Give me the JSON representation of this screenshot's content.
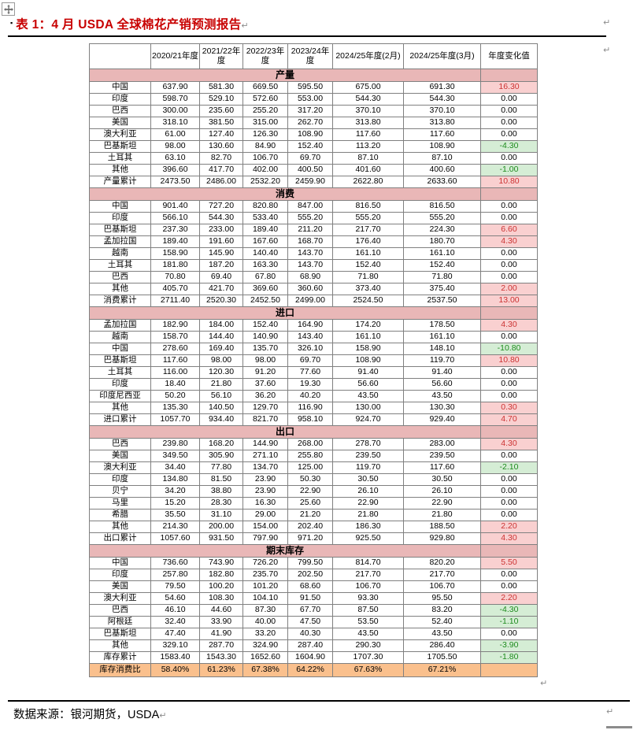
{
  "title": {
    "bullet": "▪",
    "text": "表 1：4 月 USDA 全球棉花产销预测报告"
  },
  "marks": {
    "return": "↵"
  },
  "source": {
    "text": "数据来源：银河期货，USDA"
  },
  "colors": {
    "title_red": "#c80000",
    "section_header_bg": "#e9b7b7",
    "increase_bg": "#f9d0d0",
    "increase_text": "#cc3333",
    "decrease_bg": "#d5edd5",
    "decrease_text": "#1e8b1e",
    "ratio_row_bg": "#fac08d",
    "grid_border": "#808080"
  },
  "table": {
    "headers": [
      "",
      "2020/21年度",
      "2021/22年度",
      "2022/23年度",
      "2023/24年度",
      "2024/25年度(2月)",
      "2024/25年度(3月)",
      "年度变化值"
    ],
    "sections": [
      {
        "name": "产量",
        "rows": [
          {
            "label": "中国",
            "values": [
              "637.90",
              "581.30",
              "669.50",
              "595.50",
              "675.00",
              "691.30"
            ],
            "change": "16.30"
          },
          {
            "label": "印度",
            "values": [
              "598.70",
              "529.10",
              "572.60",
              "553.00",
              "544.30",
              "544.30"
            ],
            "change": "0.00"
          },
          {
            "label": "巴西",
            "values": [
              "300.00",
              "235.60",
              "255.20",
              "317.20",
              "370.10",
              "370.10"
            ],
            "change": "0.00"
          },
          {
            "label": "美国",
            "values": [
              "318.10",
              "381.50",
              "315.00",
              "262.70",
              "313.80",
              "313.80"
            ],
            "change": "0.00"
          },
          {
            "label": "澳大利亚",
            "values": [
              "61.00",
              "127.40",
              "126.30",
              "108.90",
              "117.60",
              "117.60"
            ],
            "change": "0.00"
          },
          {
            "label": "巴基斯坦",
            "values": [
              "98.00",
              "130.60",
              "84.90",
              "152.40",
              "113.20",
              "108.90"
            ],
            "change": "-4.30"
          },
          {
            "label": "土耳其",
            "values": [
              "63.10",
              "82.70",
              "106.70",
              "69.70",
              "87.10",
              "87.10"
            ],
            "change": "0.00"
          },
          {
            "label": "其他",
            "values": [
              "396.60",
              "417.70",
              "402.00",
              "400.50",
              "401.60",
              "400.60"
            ],
            "change": "-1.00"
          },
          {
            "label": "产量累计",
            "values": [
              "2473.50",
              "2486.00",
              "2532.20",
              "2459.90",
              "2622.80",
              "2633.60"
            ],
            "change": "10.80"
          }
        ]
      },
      {
        "name": "消费",
        "rows": [
          {
            "label": "中国",
            "values": [
              "901.40",
              "727.20",
              "820.80",
              "847.00",
              "816.50",
              "816.50"
            ],
            "change": "0.00"
          },
          {
            "label": "印度",
            "values": [
              "566.10",
              "544.30",
              "533.40",
              "555.20",
              "555.20",
              "555.20"
            ],
            "change": "0.00"
          },
          {
            "label": "巴基斯坦",
            "values": [
              "237.30",
              "233.00",
              "189.40",
              "211.20",
              "217.70",
              "224.30"
            ],
            "change": "6.60"
          },
          {
            "label": "孟加拉国",
            "values": [
              "189.40",
              "191.60",
              "167.60",
              "168.70",
              "176.40",
              "180.70"
            ],
            "change": "4.30"
          },
          {
            "label": "越南",
            "values": [
              "158.90",
              "145.90",
              "140.40",
              "143.70",
              "161.10",
              "161.10"
            ],
            "change": "0.00"
          },
          {
            "label": "土耳其",
            "values": [
              "181.80",
              "187.20",
              "163.30",
              "143.70",
              "152.40",
              "152.40"
            ],
            "change": "0.00"
          },
          {
            "label": "巴西",
            "values": [
              "70.80",
              "69.40",
              "67.80",
              "68.90",
              "71.80",
              "71.80"
            ],
            "change": "0.00"
          },
          {
            "label": "其他",
            "values": [
              "405.70",
              "421.70",
              "369.60",
              "360.60",
              "373.40",
              "375.40"
            ],
            "change": "2.00"
          },
          {
            "label": "消费累计",
            "values": [
              "2711.40",
              "2520.30",
              "2452.50",
              "2499.00",
              "2524.50",
              "2537.50"
            ],
            "change": "13.00"
          }
        ]
      },
      {
        "name": "进口",
        "rows": [
          {
            "label": "孟加拉国",
            "values": [
              "182.90",
              "184.00",
              "152.40",
              "164.90",
              "174.20",
              "178.50"
            ],
            "change": "4.30"
          },
          {
            "label": "越南",
            "values": [
              "158.70",
              "144.40",
              "140.90",
              "143.40",
              "161.10",
              "161.10"
            ],
            "change": "0.00"
          },
          {
            "label": "中国",
            "values": [
              "278.60",
              "169.40",
              "135.70",
              "326.10",
              "158.90",
              "148.10"
            ],
            "change": "-10.80"
          },
          {
            "label": "巴基斯坦",
            "values": [
              "117.60",
              "98.00",
              "98.00",
              "69.70",
              "108.90",
              "119.70"
            ],
            "change": "10.80"
          },
          {
            "label": "土耳其",
            "values": [
              "116.00",
              "120.30",
              "91.20",
              "77.60",
              "91.40",
              "91.40"
            ],
            "change": "0.00"
          },
          {
            "label": "印度",
            "values": [
              "18.40",
              "21.80",
              "37.60",
              "19.30",
              "56.60",
              "56.60"
            ],
            "change": "0.00"
          },
          {
            "label": "印度尼西亚",
            "values": [
              "50.20",
              "56.10",
              "36.20",
              "40.20",
              "43.50",
              "43.50"
            ],
            "change": "0.00"
          },
          {
            "label": "其他",
            "values": [
              "135.30",
              "140.50",
              "129.70",
              "116.90",
              "130.00",
              "130.30"
            ],
            "change": "0.30"
          },
          {
            "label": "进口累计",
            "values": [
              "1057.70",
              "934.40",
              "821.70",
              "958.10",
              "924.70",
              "929.40"
            ],
            "change": "4.70"
          }
        ]
      },
      {
        "name": "出口",
        "rows": [
          {
            "label": "巴西",
            "values": [
              "239.80",
              "168.20",
              "144.90",
              "268.00",
              "278.70",
              "283.00"
            ],
            "change": "4.30"
          },
          {
            "label": "美国",
            "values": [
              "349.50",
              "305.90",
              "271.10",
              "255.80",
              "239.50",
              "239.50"
            ],
            "change": "0.00"
          },
          {
            "label": "澳大利亚",
            "values": [
              "34.40",
              "77.80",
              "134.70",
              "125.00",
              "119.70",
              "117.60"
            ],
            "change": "-2.10"
          },
          {
            "label": "印度",
            "values": [
              "134.80",
              "81.50",
              "23.90",
              "50.30",
              "30.50",
              "30.50"
            ],
            "change": "0.00"
          },
          {
            "label": "贝宁",
            "values": [
              "34.20",
              "38.80",
              "23.90",
              "22.90",
              "26.10",
              "26.10"
            ],
            "change": "0.00"
          },
          {
            "label": "马里",
            "values": [
              "15.20",
              "28.30",
              "16.30",
              "25.60",
              "22.90",
              "22.90"
            ],
            "change": "0.00"
          },
          {
            "label": "希腊",
            "values": [
              "35.50",
              "31.10",
              "29.00",
              "21.20",
              "21.80",
              "21.80"
            ],
            "change": "0.00"
          },
          {
            "label": "其他",
            "values": [
              "214.30",
              "200.00",
              "154.00",
              "202.40",
              "186.30",
              "188.50"
            ],
            "change": "2.20"
          },
          {
            "label": "出口累计",
            "values": [
              "1057.60",
              "931.50",
              "797.90",
              "971.20",
              "925.50",
              "929.80"
            ],
            "change": "4.30"
          }
        ]
      },
      {
        "name": "期末库存",
        "rows": [
          {
            "label": "中国",
            "values": [
              "736.60",
              "743.90",
              "726.20",
              "799.50",
              "814.70",
              "820.20"
            ],
            "change": "5.50"
          },
          {
            "label": "印度",
            "values": [
              "257.80",
              "182.80",
              "235.70",
              "202.50",
              "217.70",
              "217.70"
            ],
            "change": "0.00"
          },
          {
            "label": "美国",
            "values": [
              "79.50",
              "100.20",
              "101.20",
              "68.60",
              "106.70",
              "106.70"
            ],
            "change": "0.00"
          },
          {
            "label": "澳大利亚",
            "values": [
              "54.60",
              "108.30",
              "104.10",
              "91.50",
              "93.30",
              "95.50"
            ],
            "change": "2.20"
          },
          {
            "label": "巴西",
            "values": [
              "46.10",
              "44.60",
              "87.30",
              "67.70",
              "87.50",
              "83.20"
            ],
            "change": "-4.30"
          },
          {
            "label": "阿根廷",
            "values": [
              "32.40",
              "33.90",
              "40.00",
              "47.50",
              "53.50",
              "52.40"
            ],
            "change": "-1.10"
          },
          {
            "label": "巴基斯坦",
            "values": [
              "47.40",
              "41.90",
              "33.20",
              "40.30",
              "43.50",
              "43.50"
            ],
            "change": "0.00"
          },
          {
            "label": "其他",
            "values": [
              "329.10",
              "287.70",
              "324.90",
              "287.40",
              "290.30",
              "286.40"
            ],
            "change": "-3.90"
          },
          {
            "label": "库存累计",
            "values": [
              "1583.40",
              "1543.30",
              "1652.60",
              "1604.90",
              "1707.30",
              "1705.50"
            ],
            "change": "-1.80"
          }
        ]
      }
    ],
    "footer": {
      "label": "库存消费比",
      "values": [
        "58.40%",
        "61.23%",
        "67.38%",
        "64.22%",
        "67.63%",
        "67.21%"
      ],
      "change": ""
    }
  }
}
